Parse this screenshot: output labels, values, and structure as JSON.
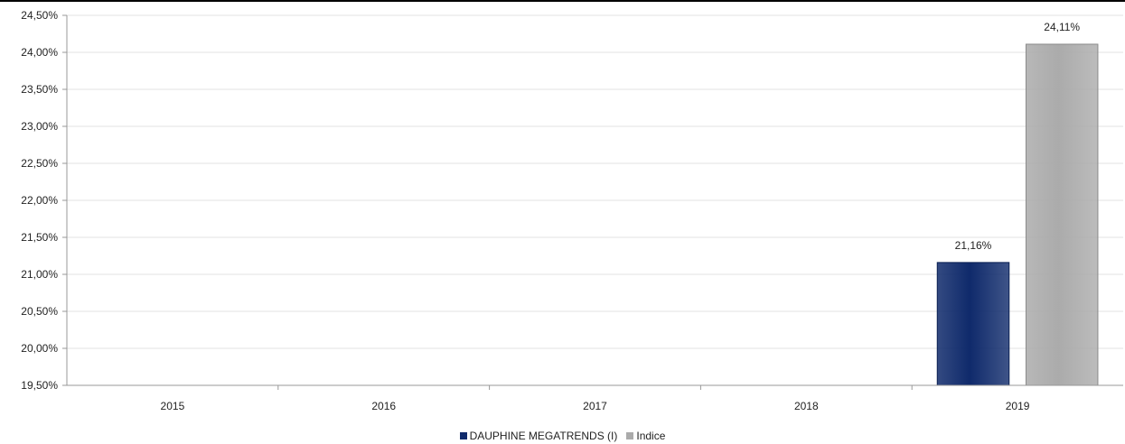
{
  "chart_data": {
    "type": "bar",
    "categories": [
      "2015",
      "2016",
      "2017",
      "2018",
      "2019"
    ],
    "series": [
      {
        "name": "DAUPHINE MEGATRENDS (I)",
        "color": "#0f2a6b",
        "values": [
          null,
          null,
          null,
          null,
          21.16
        ],
        "labels": [
          "",
          "",
          "",
          "",
          "21,16%"
        ]
      },
      {
        "name": "Indice",
        "color": "#ababab",
        "values": [
          null,
          null,
          null,
          null,
          24.11
        ],
        "labels": [
          "",
          "",
          "",
          "",
          "24,11%"
        ]
      }
    ],
    "ylim": [
      19.5,
      24.5
    ],
    "yticks": [
      19.5,
      20.0,
      20.5,
      21.0,
      21.5,
      22.0,
      22.5,
      23.0,
      23.5,
      24.0,
      24.5
    ],
    "ytick_labels": [
      "19,50%",
      "20,00%",
      "20,50%",
      "21,00%",
      "21,50%",
      "22,00%",
      "22,50%",
      "23,00%",
      "23,50%",
      "24,00%",
      "24,50%"
    ],
    "grid": true,
    "legend_position": "bottom"
  }
}
